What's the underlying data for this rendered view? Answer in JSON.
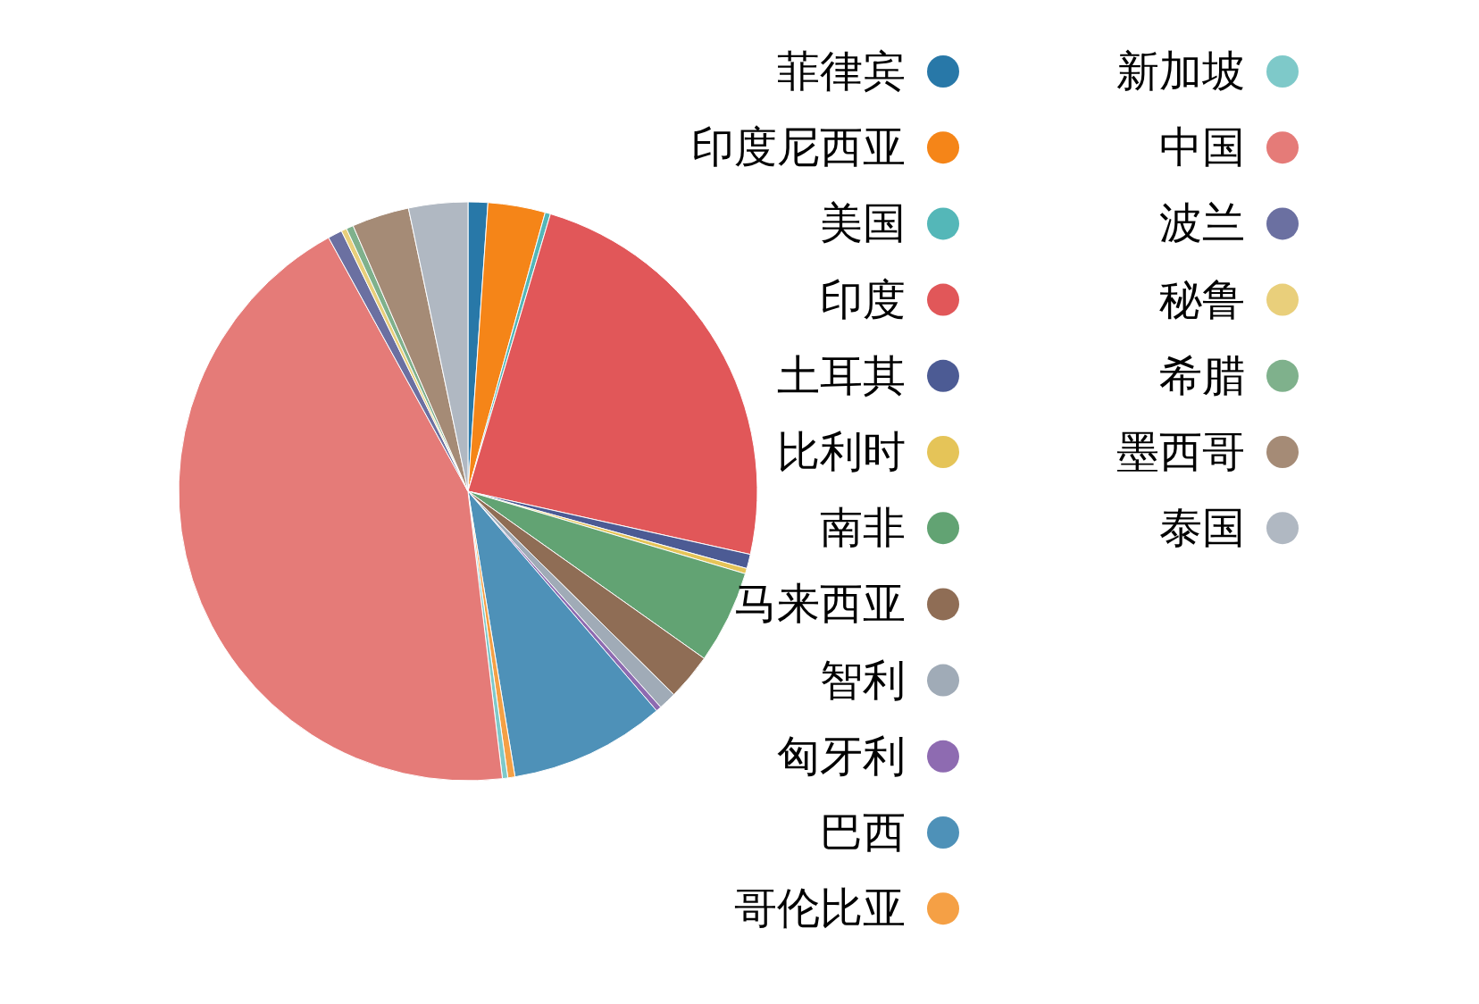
{
  "chart_data": {
    "type": "pie",
    "legend": "right",
    "categories": [
      "菲律宾",
      "印度尼西亚",
      "美国",
      "印度",
      "土耳其",
      "比利时",
      "南非",
      "马来西亚",
      "智利",
      "匈牙利",
      "巴西",
      "哥伦比亚",
      "新加坡",
      "中国",
      "波兰",
      "秘鲁",
      "希腊",
      "墨西哥",
      "泰国"
    ],
    "values": [
      1.1,
      3.2,
      0.3,
      23.9,
      0.8,
      0.3,
      5.2,
      2.6,
      1.0,
      0.3,
      8.7,
      0.4,
      0.3,
      43.9,
      0.8,
      0.3,
      0.4,
      3.2,
      3.3
    ],
    "colors": [
      "#2878a8",
      "#f58518",
      "#54b7b8",
      "#e15759",
      "#4c5b94",
      "#e5c458",
      "#62a373",
      "#8f6d55",
      "#a0abb7",
      "#8e6bb1",
      "#4e91b8",
      "#f5a045",
      "#7ec9c9",
      "#e57b78",
      "#6b70a1",
      "#e9cf7b",
      "#7fb18c",
      "#a58b76",
      "#b0b8c2"
    ]
  }
}
